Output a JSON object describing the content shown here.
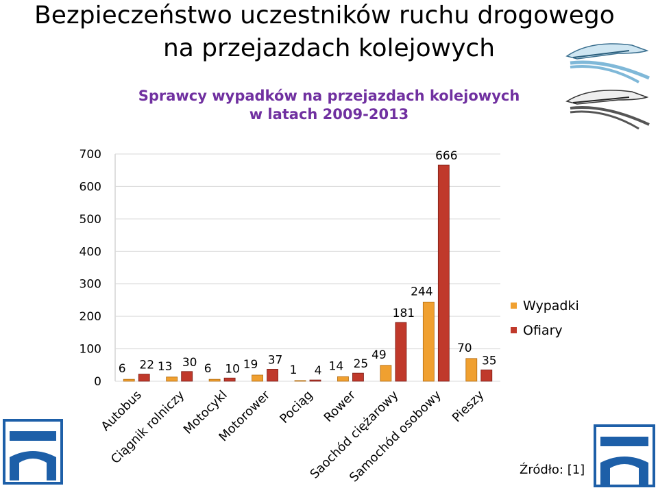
{
  "slide": {
    "title_line1": "Bezpieczeństwo uczestników ruchu drogowego",
    "title_line2": "na przejazdach kolejowych",
    "source": "Źródło: [1]",
    "logo_icon": "railway-logo-icon",
    "train_icon": "high-speed-train-icon"
  },
  "chart_data": {
    "type": "bar",
    "title_line1": "Sprawcy wypadków na przejazdach kolejowych",
    "title_line2": "w latach 2009-2013",
    "categories": [
      "Autobus",
      "Ciągnik rolniczy",
      "Motocykl",
      "Motorower",
      "Pociąg",
      "Rower",
      "Saochód ciężarowy",
      "Samochód osobowy",
      "Pieszy"
    ],
    "series": [
      {
        "name": "Wypadki",
        "values": [
          6,
          13,
          6,
          19,
          1,
          14,
          49,
          244,
          70
        ],
        "color": "#f0a030"
      },
      {
        "name": "Ofiary",
        "values": [
          22,
          30,
          10,
          37,
          4,
          25,
          181,
          666,
          35
        ],
        "color": "#c0392b"
      }
    ],
    "yticks": [
      "700",
      "600",
      "500",
      "400",
      "300",
      "200",
      "100",
      "0"
    ],
    "ylim": [
      0,
      700
    ],
    "grid": true,
    "legend_position": "right"
  }
}
